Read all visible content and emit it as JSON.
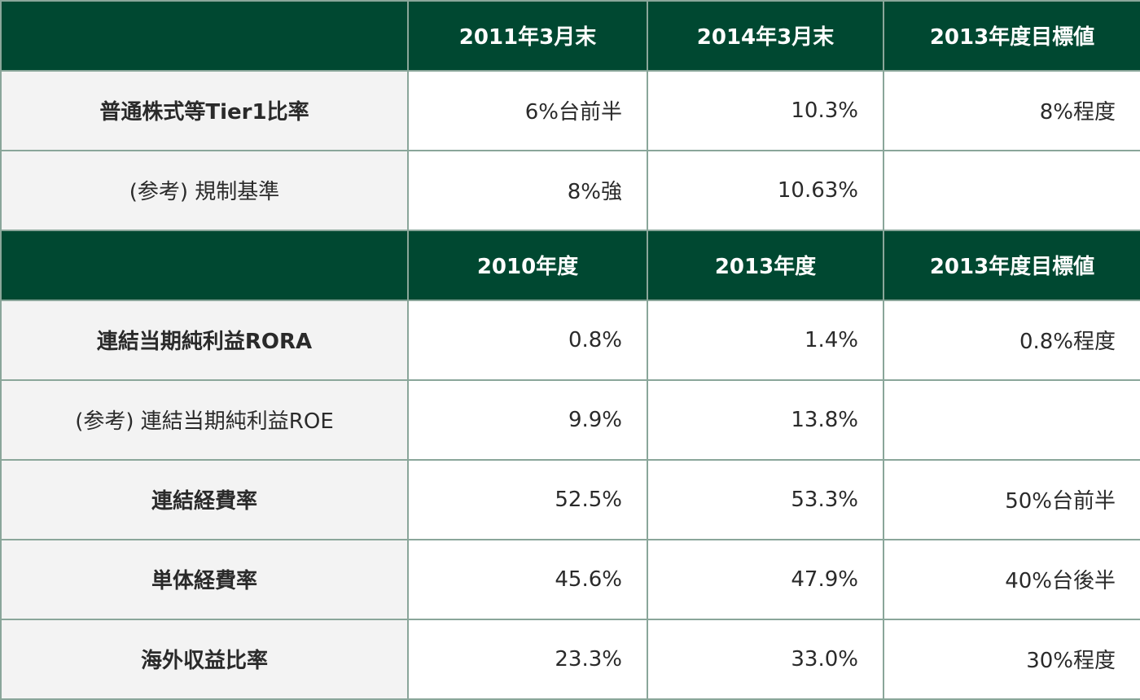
{
  "section1": {
    "headers": [
      "",
      "2011年3月末",
      "2014年3月末",
      "2013年度目標値"
    ],
    "rows": [
      {
        "label": "普通株式等Tier1比率",
        "values": [
          "6%台前半",
          "10.3%",
          "8%程度"
        ]
      },
      {
        "label": "(参考) 規制基準",
        "values": [
          "8%強",
          "10.63%",
          ""
        ]
      }
    ]
  },
  "section2": {
    "headers": [
      "",
      "2010年度",
      "2013年度",
      "2013年度目標値"
    ],
    "rows": [
      {
        "label": "連結当期純利益RORA",
        "values": [
          "0.8%",
          "1.4%",
          "0.8%程度"
        ]
      },
      {
        "label": "(参考) 連結当期純利益ROE",
        "values": [
          "9.9%",
          "13.8%",
          ""
        ]
      },
      {
        "label": "連結経費率",
        "values": [
          "52.5%",
          "53.3%",
          "50%台前半"
        ]
      },
      {
        "label": "単体経費率",
        "values": [
          "45.6%",
          "47.9%",
          "40%台後半"
        ]
      },
      {
        "label": "海外収益比率",
        "values": [
          "23.3%",
          "33.0%",
          "30%程度"
        ]
      }
    ]
  }
}
